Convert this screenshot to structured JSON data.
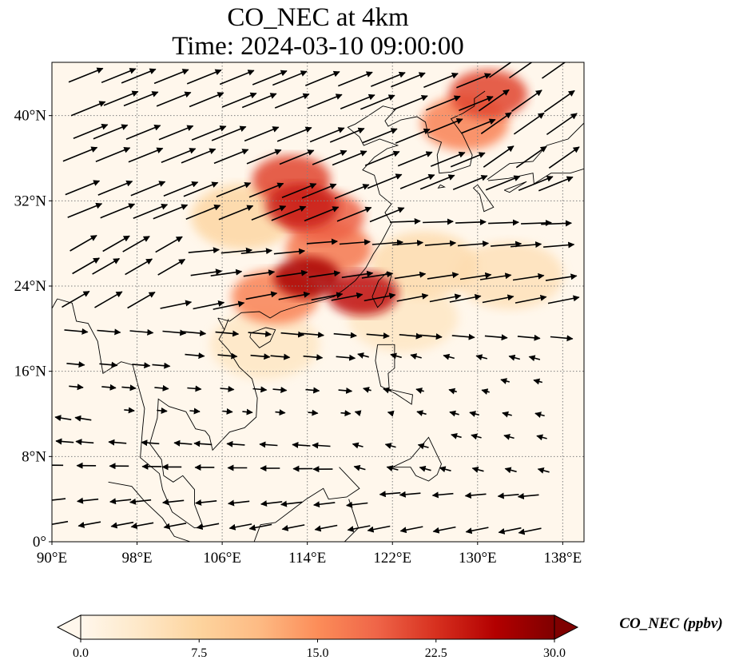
{
  "title_line1": "CO_NEC at 4km",
  "title_line2": "Time: 2024-03-10 09:00:00",
  "map": {
    "lon_range": [
      90,
      140
    ],
    "lat_range": [
      0,
      45
    ],
    "lon_ticks": [
      "90°E",
      "98°E",
      "106°E",
      "114°E",
      "122°E",
      "130°E",
      "138°E"
    ],
    "lon_tick_values": [
      90,
      98,
      106,
      114,
      122,
      130,
      138
    ],
    "lat_ticks": [
      "0°",
      "8°N",
      "16°N",
      "24°N",
      "32°N",
      "40°N"
    ],
    "lat_tick_values": [
      0,
      8,
      16,
      24,
      32,
      40
    ],
    "gridlines": "dotted",
    "wind_vectors": "shown",
    "coastlines": "shown"
  },
  "colorbar": {
    "label": "CO_NEC (ppbv)",
    "ticks": [
      "0.0",
      "7.5",
      "15.0",
      "22.5",
      "30.0"
    ],
    "tick_values": [
      0,
      7.5,
      15,
      22.5,
      30
    ],
    "range": [
      0,
      30
    ],
    "extend": "both",
    "colormap": "OrRd",
    "colors": [
      "#fff7ec",
      "#fee8c8",
      "#fdd49e",
      "#fdbb84",
      "#fc8d59",
      "#ef6548",
      "#d7301f",
      "#b30000",
      "#7f0000"
    ]
  },
  "plumes": [
    {
      "lon": 113.5,
      "lat": 31.5,
      "value": 24
    },
    {
      "lon": 112.5,
      "lat": 34.0,
      "value": 21
    },
    {
      "lon": 115.5,
      "lat": 30.5,
      "value": 19
    },
    {
      "lon": 114.0,
      "lat": 24.8,
      "value": 27
    },
    {
      "lon": 119.2,
      "lat": 23.3,
      "value": 25
    },
    {
      "lon": 116.0,
      "lat": 27.5,
      "value": 17
    },
    {
      "lon": 131.0,
      "lat": 42.0,
      "value": 21
    },
    {
      "lon": 128.8,
      "lat": 39.3,
      "value": 16
    },
    {
      "lon": 111.0,
      "lat": 23.0,
      "value": 16
    },
    {
      "lon": 108.0,
      "lat": 30.5,
      "value": 7
    },
    {
      "lon": 125.0,
      "lat": 26.0,
      "value": 6
    },
    {
      "lon": 133.0,
      "lat": 25.0,
      "value": 5
    },
    {
      "lon": 123.0,
      "lat": 21.0,
      "value": 4
    },
    {
      "lon": 110.0,
      "lat": 18.5,
      "value": 4
    }
  ]
}
